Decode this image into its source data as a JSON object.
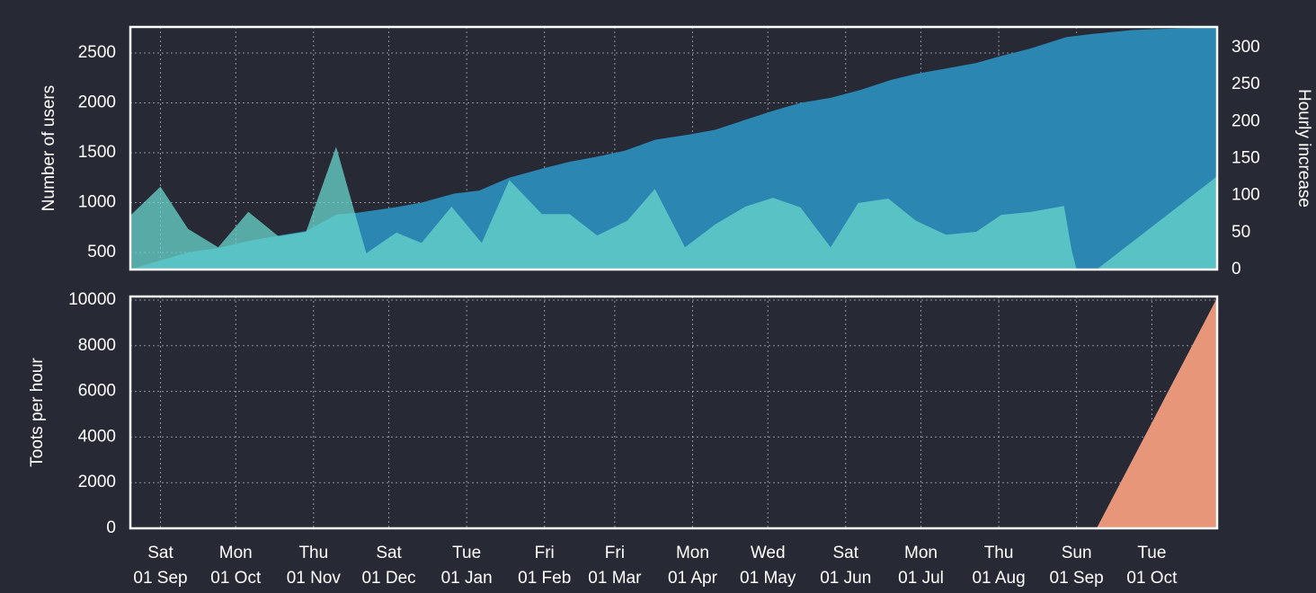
{
  "chart_data": [
    {
      "type": "area",
      "ylabel": "Number of users",
      "ylabel_color": "#7ec4e2",
      "y2label": "Hourly increase",
      "y2label_color": "#6fd6d0",
      "xlim": [
        -12,
        421
      ],
      "xticks": [
        0,
        30,
        61,
        91,
        122,
        153,
        181,
        212,
        242,
        273,
        303,
        334,
        365,
        395
      ],
      "ylim": [
        329,
        2761
      ],
      "yticks": [
        500,
        1000,
        1500,
        2000,
        2500
      ],
      "y2lim": [
        0,
        328
      ],
      "y2ticks": [
        0,
        50,
        100,
        150,
        200,
        250,
        300
      ],
      "grid": true,
      "series": [
        {
          "color": "#2b86b1",
          "axis": "y",
          "x": [
            -12,
            0,
            11,
            23,
            36,
            47,
            58,
            70,
            79,
            94,
            104,
            117,
            127,
            139,
            152,
            163,
            174,
            185,
            197,
            210,
            221,
            233,
            244,
            255,
            267,
            279,
            291,
            301,
            312,
            325,
            335,
            346,
            361,
            371,
            387,
            421
          ],
          "values": [
            330,
            420,
            500,
            545,
            620,
            670,
            715,
            880,
            900,
            955,
            1000,
            1090,
            1120,
            1250,
            1340,
            1410,
            1460,
            1520,
            1630,
            1680,
            1730,
            1830,
            1920,
            2000,
            2050,
            2130,
            2230,
            2290,
            2340,
            2400,
            2470,
            2540,
            2660,
            2690,
            2730,
            2760
          ]
        },
        {
          "color": "#6ad6cc",
          "axis": "y2",
          "opacity": 0.75,
          "x": [
            -12,
            0,
            11,
            23,
            35,
            47,
            58,
            70,
            82,
            94,
            104,
            116,
            128,
            139,
            152,
            163,
            174,
            186,
            197,
            209,
            221,
            233,
            244,
            255,
            267,
            278,
            290,
            301,
            313,
            325,
            335,
            347,
            360,
            363,
            365,
            373,
            421
          ],
          "values": [
            73,
            112,
            55,
            30,
            78,
            45,
            51,
            166,
            22,
            50,
            36,
            85,
            36,
            121,
            75,
            75,
            46,
            66,
            109,
            30,
            61,
            85,
            97,
            84,
            30,
            90,
            96,
            66,
            47,
            51,
            74,
            78,
            86,
            27,
            0,
            0,
            126
          ]
        }
      ]
    },
    {
      "type": "area",
      "ylabel": "Toots per hour",
      "ylabel_color": "#e8967a",
      "xlim": [
        -12,
        421
      ],
      "xticks": [
        {
          "value": 0,
          "label": "Sat\n01 Sep"
        },
        {
          "value": 30,
          "label": "Mon\n01 Oct"
        },
        {
          "value": 61,
          "label": "Thu\n01 Nov"
        },
        {
          "value": 91,
          "label": "Sat\n01 Dec"
        },
        {
          "value": 122,
          "label": "Tue\n01 Jan"
        },
        {
          "value": 153,
          "label": "Fri\n01 Feb"
        },
        {
          "value": 181,
          "label": "Fri\n01 Mar"
        },
        {
          "value": 212,
          "label": "Mon\n01 Apr"
        },
        {
          "value": 242,
          "label": "Wed\n01 May"
        },
        {
          "value": 273,
          "label": "Sat\n01 Jun"
        },
        {
          "value": 303,
          "label": "Mon\n01 Jul"
        },
        {
          "value": 334,
          "label": "Thu\n01 Aug"
        },
        {
          "value": 365,
          "label": "Sun\n01 Sep"
        },
        {
          "value": 395,
          "label": "Tue\n01 Oct"
        }
      ],
      "ylim": [
        0,
        10157
      ],
      "yticks": [
        0,
        2000,
        4000,
        6000,
        8000,
        10000
      ],
      "grid": true,
      "series": [
        {
          "color": "#e8967a",
          "axis": "y",
          "x": [
            -12,
            373,
            421
          ],
          "values": [
            0,
            0,
            10100
          ]
        }
      ]
    }
  ]
}
